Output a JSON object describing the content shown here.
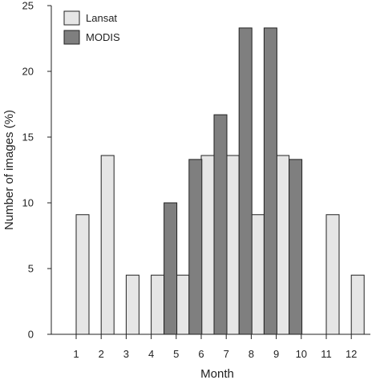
{
  "chart_data": {
    "type": "bar",
    "categories": [
      "1",
      "2",
      "3",
      "4",
      "5",
      "6",
      "7",
      "8",
      "9",
      "10",
      "11",
      "12"
    ],
    "series": [
      {
        "name": "Lansat",
        "color": "#e6e6e6",
        "values": [
          9.1,
          13.6,
          4.5,
          4.5,
          4.5,
          13.6,
          13.6,
          9.1,
          13.6,
          0,
          9.1,
          4.5
        ]
      },
      {
        "name": "MODIS",
        "color": "#7f7f7f",
        "values": [
          0,
          0,
          0,
          10.0,
          13.3,
          16.7,
          23.3,
          23.3,
          13.3,
          0,
          0,
          0
        ]
      }
    ],
    "xlabel": "Month",
    "ylabel": "Number of images (%)",
    "ylim": [
      0,
      25
    ],
    "yticks": [
      "0",
      "5",
      "10",
      "15",
      "20",
      "25"
    ],
    "grid": false,
    "legend": "top-left"
  }
}
